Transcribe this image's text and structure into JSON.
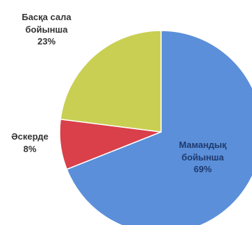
{
  "chart_data": {
    "type": "pie",
    "title": "",
    "slices": [
      {
        "label_lines": [
          "Мамандық",
          "бойынша"
        ],
        "value": 69,
        "percent_label": "69%",
        "color": "#5b8fd9"
      },
      {
        "label_lines": [
          "Әскерде"
        ],
        "value": 8,
        "percent_label": "8%",
        "color": "#d9404a"
      },
      {
        "label_lines": [
          "Басқа сала",
          "бойынша"
        ],
        "value": 23,
        "percent_label": "23%",
        "color": "#c9cf52"
      }
    ],
    "start_angle_deg": 0,
    "direction": "clockwise",
    "legend": "none"
  }
}
